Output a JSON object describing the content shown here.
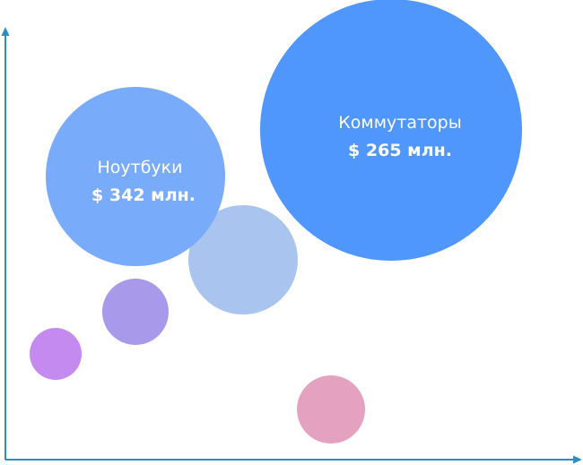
{
  "chart_data": {
    "type": "bubble",
    "title": "",
    "xlabel": "",
    "ylabel": "",
    "grid": false,
    "legend": "none",
    "axis_color": "#2a8ec7",
    "bubbles": [
      {
        "id": "kommutatory",
        "label": "Коммутаторы",
        "value_text": "$ 265 млн.",
        "color": "#4f96fd"
      },
      {
        "id": "noutbuki",
        "label": "Ноутбуки",
        "value_text": "$ 342 млн.",
        "color": "#79abfb"
      },
      {
        "id": "bubble-3",
        "label": "",
        "value_text": "",
        "color": "#a9c4ef"
      },
      {
        "id": "bubble-4",
        "label": "",
        "value_text": "",
        "color": "#a899ea"
      },
      {
        "id": "bubble-5",
        "label": "",
        "value_text": "",
        "color": "#c48af0"
      },
      {
        "id": "bubble-6",
        "label": "",
        "value_text": "",
        "color": "#e5a1c0"
      }
    ]
  }
}
